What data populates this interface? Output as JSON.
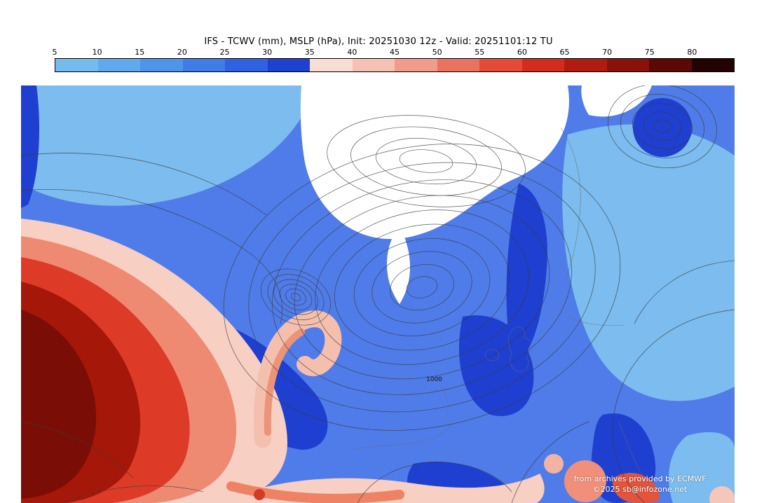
{
  "title": "IFS - TCWV (mm), MSLP (hPa), Init: 20251030 12z - Valid: 20251101:12 TU",
  "colorbar": {
    "ticks": [
      "5",
      "10",
      "15",
      "20",
      "25",
      "30",
      "35",
      "40",
      "45",
      "50",
      "55",
      "60",
      "65",
      "70",
      "75",
      "80"
    ],
    "colors": [
      "#76bbee",
      "#60a9ec",
      "#5094ea",
      "#407be6",
      "#3061e0",
      "#1f41d0",
      "#f8ddd5",
      "#f5c1b5",
      "#f09b8b",
      "#ea7260",
      "#e34b38",
      "#d22c1e",
      "#b11c10",
      "#8a120a",
      "#5c0905",
      "#230302"
    ],
    "border_color": "#000000"
  },
  "map": {
    "contour_labels": [
      {
        "text": "1000"
      }
    ],
    "attribution": {
      "line1": "from archives provided by ECMWF",
      "line2": "©2025 sb@infozone.net"
    },
    "legend_colors": {
      "dry_white": "#ffffff",
      "light_blue": "#7cbcee",
      "mid_blue": "#4f7ce8",
      "dark_blue": "#1e3fd0",
      "pale_pink": "#f7cfc3",
      "salmon": "#ef8a72",
      "red": "#dd3b28",
      "dark_red": "#a51708",
      "deep_red": "#7a0e06",
      "contour": "#3c3c3c"
    }
  }
}
